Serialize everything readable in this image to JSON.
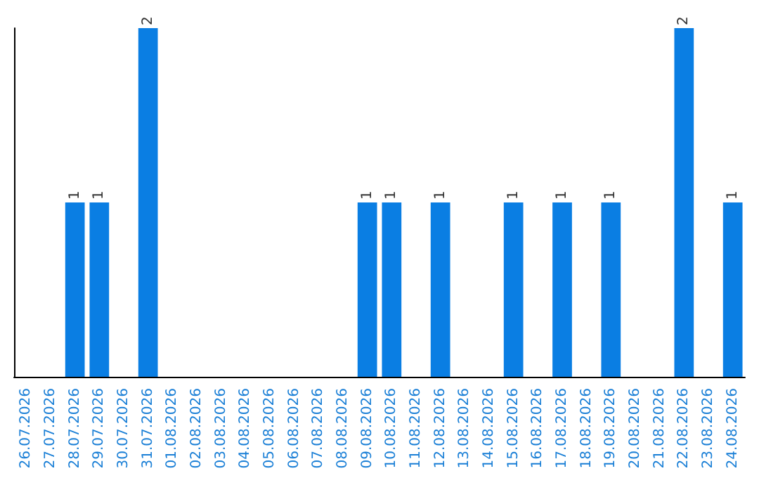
{
  "chart_data": {
    "type": "bar",
    "categories": [
      "26.07.2026",
      "27.07.2026",
      "28.07.2026",
      "29.07.2026",
      "30.07.2026",
      "31.07.2026",
      "01.08.2026",
      "02.08.2026",
      "03.08.2026",
      "04.08.2026",
      "05.08.2026",
      "06.08.2026",
      "07.08.2026",
      "08.08.2026",
      "09.08.2026",
      "10.08.2026",
      "11.08.2026",
      "12.08.2026",
      "13.08.2026",
      "14.08.2026",
      "15.08.2026",
      "16.08.2026",
      "17.08.2026",
      "18.08.2026",
      "19.08.2026",
      "20.08.2026",
      "21.08.2026",
      "22.08.2026",
      "23.08.2026",
      "24.08.2026"
    ],
    "values": [
      0,
      0,
      1,
      1,
      0,
      2,
      0,
      0,
      0,
      0,
      0,
      0,
      0,
      0,
      1,
      1,
      0,
      1,
      0,
      0,
      1,
      0,
      1,
      0,
      1,
      0,
      0,
      2,
      0,
      1
    ],
    "value_labels": [
      null,
      null,
      "1",
      "1",
      null,
      "2",
      null,
      null,
      null,
      null,
      null,
      null,
      null,
      null,
      "1",
      "1",
      null,
      "1",
      null,
      null,
      "1",
      null,
      "1",
      null,
      "1",
      null,
      null,
      "2",
      null,
      "1"
    ],
    "color": "#0a7ee3",
    "tick_labels": "x"
  }
}
